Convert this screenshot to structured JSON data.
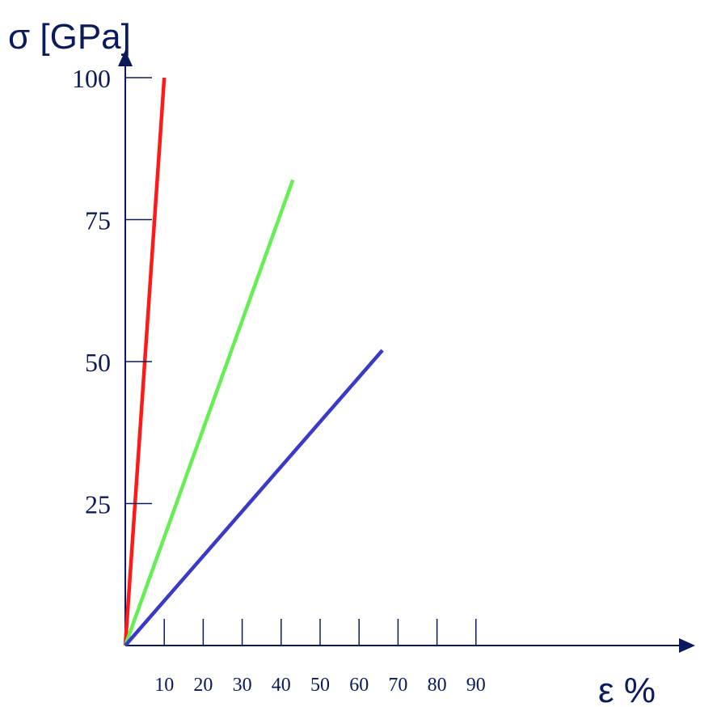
{
  "chart_data": {
    "type": "line",
    "title": "",
    "ylabel": "σ [GPa]",
    "xlabel": "ε %",
    "x_ticks": [
      10,
      20,
      30,
      40,
      50,
      60,
      70,
      80,
      90
    ],
    "y_ticks": [
      25,
      50,
      75,
      100
    ],
    "xlim": [
      0,
      100
    ],
    "ylim": [
      0,
      100
    ],
    "grid": false,
    "series": [
      {
        "color": "#ff1a1a",
        "points": [
          [
            0,
            0
          ],
          [
            10,
            100
          ]
        ]
      },
      {
        "color": "#66ee55",
        "points": [
          [
            0,
            0
          ],
          [
            43,
            82
          ]
        ]
      },
      {
        "color": "#3a3ac8",
        "points": [
          [
            0,
            0
          ],
          [
            66,
            52
          ]
        ]
      }
    ],
    "axis_color": "#0a1a5c"
  }
}
